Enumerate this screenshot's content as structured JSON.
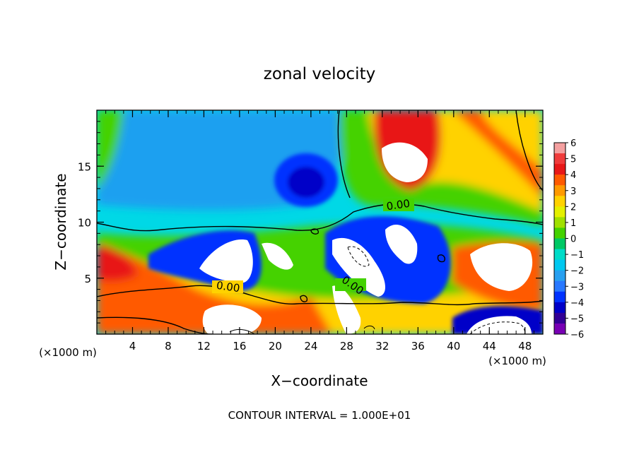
{
  "chart_data": {
    "type": "heatmap",
    "title": "zonal velocity",
    "xlabel": "X−coordinate",
    "ylabel": "Z−coordinate",
    "x_unit": "(×1000 m)",
    "y_unit": "(×1000 m)",
    "xlim": [
      0,
      50
    ],
    "ylim": [
      0,
      20
    ],
    "x_ticks": [
      4,
      8,
      12,
      16,
      20,
      24,
      28,
      32,
      36,
      40,
      44,
      48
    ],
    "y_ticks": [
      5,
      10,
      15
    ],
    "x_tick_labels": [
      "4",
      "8",
      "12",
      "16",
      "20",
      "24",
      "28",
      "32",
      "36",
      "40",
      "44",
      "48"
    ],
    "y_tick_labels": [
      "5",
      "10",
      "15"
    ],
    "colorbar": {
      "ticks": [
        "6",
        "5",
        "4",
        "3",
        "2",
        "1",
        "0",
        "−1",
        "−2",
        "−3",
        "−4",
        "−5",
        "−6"
      ],
      "colors": [
        "#f4a0a0",
        "#f03c3c",
        "#e81818",
        "#ff5a00",
        "#ff9a00",
        "#ffd200",
        "#e4f000",
        "#a0e000",
        "#44d200",
        "#00c864",
        "#00dcc8",
        "#00c8f0",
        "#28a0f0",
        "#2878ff",
        "#0032ff",
        "#0000c8",
        "#320096",
        "#7800b4"
      ]
    },
    "contour_labels": [
      "0.00",
      "0.00",
      "0.00"
    ],
    "contour_interval_text": "CONTOUR INTERVAL = 1.000E+01",
    "features": [
      {
        "x": 17,
        "z": 6.5,
        "value": "above 6"
      },
      {
        "x": 21,
        "z": 7.5,
        "value": "above 6"
      },
      {
        "x": 33,
        "z": 16,
        "value": "above 6"
      },
      {
        "x": 35,
        "z": 8,
        "value": "above 6"
      },
      {
        "x": 45,
        "z": 6.5,
        "value": "above 6"
      },
      {
        "x": 30,
        "z": 2,
        "value": "above 6"
      },
      {
        "x": 14,
        "z": 1.5,
        "value": "above 6"
      },
      {
        "x": 24,
        "z": 13.5,
        "value": "-5"
      },
      {
        "x": 13,
        "z": 17,
        "value": "-3"
      },
      {
        "x": 46,
        "z": 0.8,
        "value": "below -6"
      },
      {
        "x": 28,
        "z": 8.5,
        "value": "-4"
      }
    ]
  }
}
